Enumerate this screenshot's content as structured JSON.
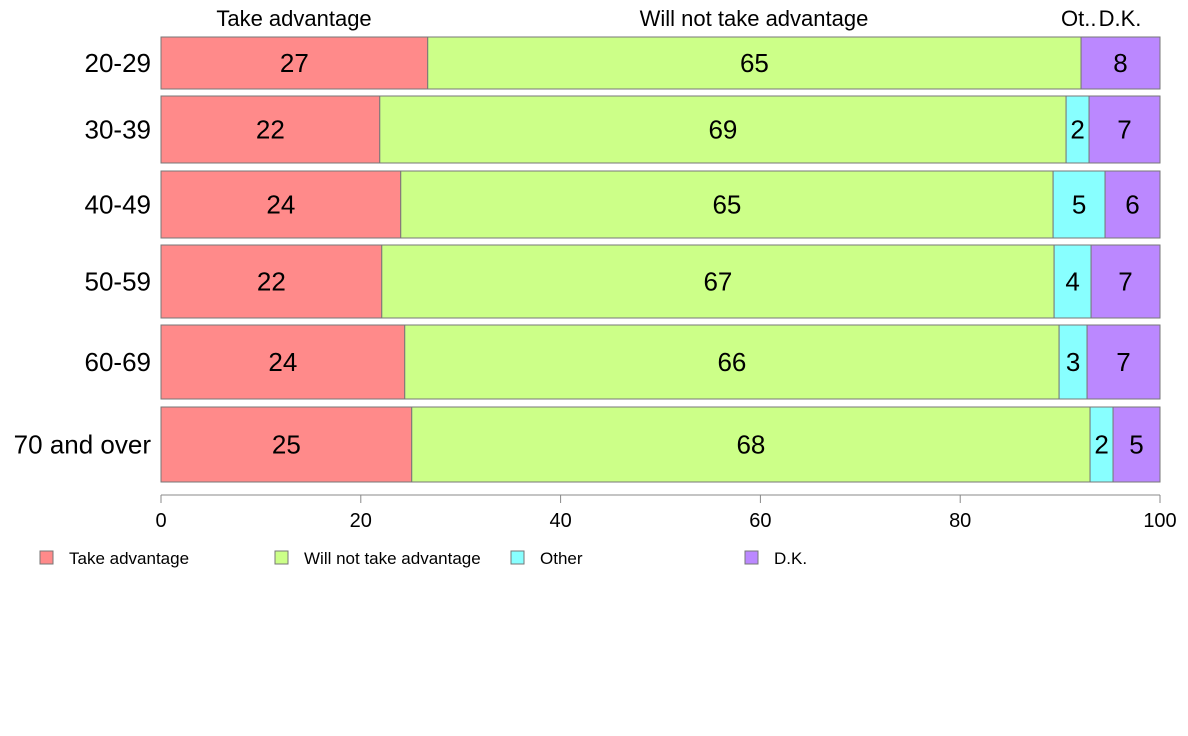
{
  "chart_data": {
    "type": "bar",
    "orientation": "horizontal",
    "stacked": true,
    "percent": true,
    "xlim": [
      0,
      100
    ],
    "xticks": [
      0,
      20,
      40,
      60,
      80,
      100
    ],
    "categories": [
      "20-29",
      "30-39",
      "40-49",
      "50-59",
      "60-69",
      "70 and over"
    ],
    "series": [
      {
        "name": "Take advantage",
        "color": "#ff8a8a",
        "values": [
          26.7,
          21.9,
          24.0,
          22.1,
          24.4,
          25.1
        ],
        "labels": [
          "27",
          "22",
          "24",
          "22",
          "24",
          "25"
        ]
      },
      {
        "name": "Will not take advantage",
        "color": "#ccff88",
        "values": [
          65.4,
          68.7,
          65.3,
          67.3,
          65.5,
          67.9
        ],
        "labels": [
          "65",
          "69",
          "65",
          "67",
          "66",
          "68"
        ]
      },
      {
        "name": "Other",
        "color": "#88ffff",
        "values": [
          0,
          2.3,
          5.2,
          3.7,
          2.8,
          2.3
        ],
        "labels": [
          "",
          "2",
          "5",
          "4",
          "3",
          "2"
        ]
      },
      {
        "name": "D.K.",
        "color": "#bb88ff",
        "values": [
          7.9,
          7.1,
          5.5,
          6.9,
          7.3,
          4.7
        ],
        "labels": [
          "8",
          "7",
          "6",
          "7",
          "7",
          "5"
        ]
      }
    ],
    "top_labels": [
      "Take advantage",
      "Will not take advantage",
      "Ot..",
      "D.K."
    ],
    "legend": [
      "Take advantage",
      "Will not take advantage",
      "Other",
      "D.K."
    ],
    "legend_position": "bottom-left",
    "grid": false
  }
}
